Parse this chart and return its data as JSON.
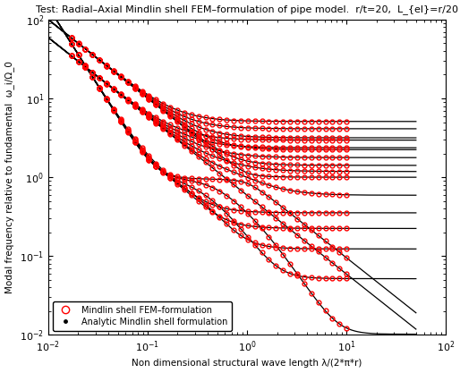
{
  "title": "Test: Radial–Axial Mindlin shell FEM–formulation of pipe model.  r/t=20,  L_{el}=r/20",
  "xlabel": "Non dimensional structural wave length λ/(2*π*r)",
  "ylabel": "Modal frequency relative to fundamental  ω_i/Ω_0",
  "xlim": [
    0.01,
    100
  ],
  "ylim": [
    0.01,
    100
  ],
  "legend_fem": "Mindlin shell FEM–formulation",
  "legend_analytic": "Analytic Mindlin shell formulation",
  "marker_fem_color": "#ff0000",
  "line_analytic_color": "#000000",
  "background": "#ffffff",
  "r_over_t": 20,
  "title_fontsize": 8.0
}
